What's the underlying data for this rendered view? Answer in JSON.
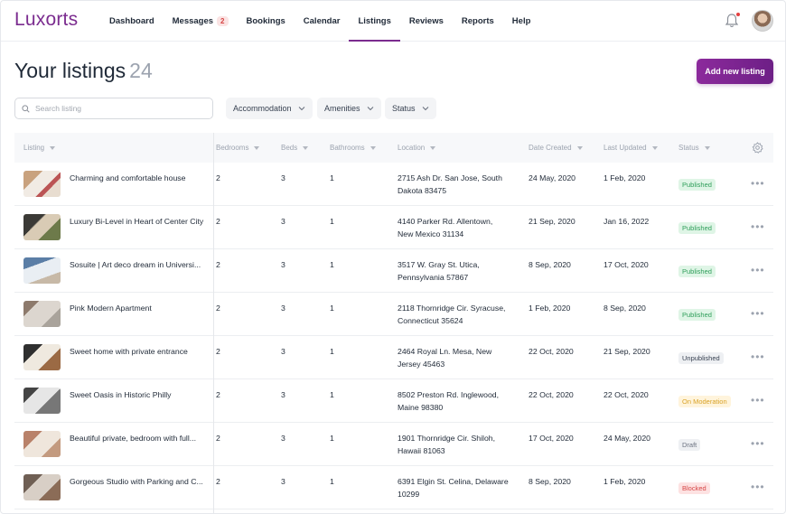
{
  "app": {
    "logo": "Luxorts"
  },
  "nav": [
    {
      "label": "Dashboard"
    },
    {
      "label": "Messages",
      "badge": "2"
    },
    {
      "label": "Bookings"
    },
    {
      "label": "Calendar"
    },
    {
      "label": "Listings",
      "active": true
    },
    {
      "label": "Reviews"
    },
    {
      "label": "Reports"
    },
    {
      "label": "Help"
    }
  ],
  "header": {
    "title": "Your listings",
    "count": "24",
    "add_button": "Add new listing"
  },
  "search": {
    "placeholder": "Search listing"
  },
  "filters": [
    "Accommodation",
    "Amenities",
    "Status"
  ],
  "columns": [
    "Listing",
    "Bedrooms",
    "Beds",
    "Bathrooms",
    "Location",
    "Date Created",
    "Last Updated",
    "Status"
  ],
  "rows": [
    {
      "name": "Charming and comfortable house",
      "bedrooms": "2",
      "beds": "3",
      "bathrooms": "1",
      "location_1": "2715 Ash Dr. San Jose, South",
      "location_2": "Dakota 83475",
      "created": "24 May, 2020",
      "updated": "1 Feb, 2020",
      "status": "Published",
      "status_kind": "published"
    },
    {
      "name": "Luxury Bi-Level in Heart of Center City",
      "bedrooms": "2",
      "beds": "3",
      "bathrooms": "1",
      "location_1": "4140 Parker Rd. Allentown,",
      "location_2": "New Mexico 31134",
      "created": "21 Sep, 2020",
      "updated": "Jan 16, 2022",
      "status": "Published",
      "status_kind": "published"
    },
    {
      "name": "Sosuite | Art deco dream in Universi...",
      "bedrooms": "2",
      "beds": "3",
      "bathrooms": "1",
      "location_1": "3517 W. Gray St. Utica,",
      "location_2": "Pennsylvania 57867",
      "created": "8 Sep, 2020",
      "updated": "17 Oct, 2020",
      "status": "Published",
      "status_kind": "published"
    },
    {
      "name": "Pink Modern Apartment",
      "bedrooms": "2",
      "beds": "3",
      "bathrooms": "1",
      "location_1": "2118 Thornridge Cir. Syracuse,",
      "location_2": "Connecticut 35624",
      "created": "1 Feb, 2020",
      "updated": "8 Sep, 2020",
      "status": "Published",
      "status_kind": "published"
    },
    {
      "name": "Sweet home with private entrance",
      "bedrooms": "2",
      "beds": "3",
      "bathrooms": "1",
      "location_1": "2464 Royal Ln. Mesa, New",
      "location_2": "Jersey 45463",
      "created": "22 Oct, 2020",
      "updated": "21 Sep, 2020",
      "status": "Unpublished",
      "status_kind": "unpublished"
    },
    {
      "name": "Sweet Oasis in Historic Philly",
      "bedrooms": "2",
      "beds": "3",
      "bathrooms": "1",
      "location_1": "8502 Preston Rd. Inglewood,",
      "location_2": "Maine 98380",
      "created": "22 Oct, 2020",
      "updated": "22 Oct, 2020",
      "status": "On Moderation",
      "status_kind": "moderation"
    },
    {
      "name": "Beautiful private, bedroom with full...",
      "bedrooms": "2",
      "beds": "3",
      "bathrooms": "1",
      "location_1": "1901 Thornridge Cir. Shiloh,",
      "location_2": "Hawaii 81063",
      "created": "17 Oct, 2020",
      "updated": "24 May, 2020",
      "status": "Draft",
      "status_kind": "draft"
    },
    {
      "name": "Gorgeous Studio with Parking and C...",
      "bedrooms": "2",
      "beds": "3",
      "bathrooms": "1",
      "location_1": "6391 Elgin St. Celina, Delaware",
      "location_2": "10299",
      "created": "8 Sep, 2020",
      "updated": "1 Feb, 2020",
      "status": "Blocked",
      "status_kind": "blocked"
    }
  ],
  "colors": {
    "brand": "#7b2c8f",
    "published": "#2f9e5a",
    "moderation": "#d9a227",
    "blocked": "#d64545"
  }
}
